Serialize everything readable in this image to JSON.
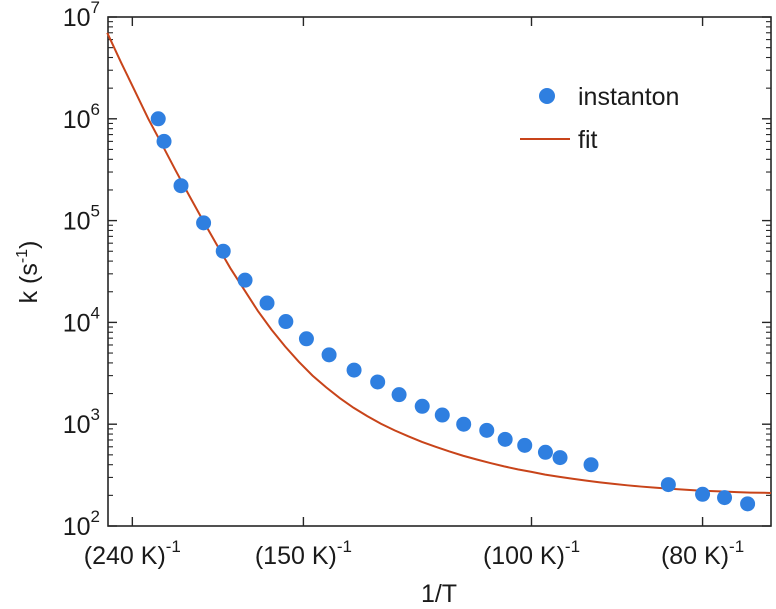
{
  "chart_data": {
    "type": "scatter",
    "xlabel": "1/T",
    "ylabel_base": "k (s",
    "ylabel_sup": "-1",
    "ylabel_close": ")",
    "yscale": "log",
    "ylim": [
      100,
      10000000
    ],
    "xlim": [
      0.003811,
      0.0135
    ],
    "grid": false,
    "legend_position": "top-right",
    "x_tick_labels": [
      {
        "x": 0.0041667,
        "base": "(240 K)",
        "sup": "-1"
      },
      {
        "x": 0.0066667,
        "base": "(150 K)",
        "sup": "-1"
      },
      {
        "x": 0.01,
        "base": "(100 K)",
        "sup": "-1"
      },
      {
        "x": 0.0125,
        "base": "(80 K)",
        "sup": "-1"
      }
    ],
    "y_tick_labels": [
      {
        "value": 100,
        "base": "10",
        "sup": "2"
      },
      {
        "value": 1000,
        "base": "10",
        "sup": "3"
      },
      {
        "value": 10000,
        "base": "10",
        "sup": "4"
      },
      {
        "value": 100000,
        "base": "10",
        "sup": "5"
      },
      {
        "value": 1000000,
        "base": "10",
        "sup": "6"
      },
      {
        "value": 10000000,
        "base": "10",
        "sup": "7"
      }
    ],
    "series": [
      {
        "name": "instanton",
        "kind": "points",
        "color": "#2f7fe0",
        "x": [
          0.004545,
          0.00463,
          0.004878,
          0.005208,
          0.005495,
          0.005814,
          0.006135,
          0.00641,
          0.006711,
          0.007042,
          0.007407,
          0.007752,
          0.008065,
          0.008403,
          0.008696,
          0.009009,
          0.009346,
          0.009615,
          0.009901,
          0.010204,
          0.010417,
          0.01087,
          0.012,
          0.0125,
          0.012821,
          0.013158
        ],
        "y": [
          1000000,
          600000,
          220000,
          95000,
          50000,
          26000,
          15500,
          10200,
          6900,
          4800,
          3400,
          2600,
          1950,
          1500,
          1230,
          1000,
          870,
          710,
          620,
          530,
          470,
          400,
          255,
          205,
          190,
          165
        ]
      },
      {
        "name": "fit",
        "kind": "line",
        "color": "#c8441a",
        "x": [
          0.0038,
          0.004,
          0.0042,
          0.0044,
          0.0046,
          0.0048,
          0.005,
          0.0052,
          0.0054,
          0.0056,
          0.0058,
          0.006,
          0.0062,
          0.0064,
          0.0066,
          0.0068,
          0.007,
          0.0072,
          0.0074,
          0.0076,
          0.0078,
          0.008,
          0.0082,
          0.0084,
          0.0086,
          0.0088,
          0.009,
          0.0092,
          0.0094,
          0.0096,
          0.0098,
          0.01,
          0.0102,
          0.0104,
          0.0106,
          0.0108,
          0.011,
          0.0112,
          0.0114,
          0.0116,
          0.0118,
          0.012,
          0.0122,
          0.0124,
          0.0126,
          0.0128,
          0.013,
          0.0132,
          0.0134,
          0.0135
        ],
        "y": [
          7000000,
          3600000,
          1900000,
          1000000,
          560000,
          310000,
          175000,
          100000,
          58000,
          34000,
          21000,
          13000,
          8500,
          5800,
          4100,
          3000,
          2300,
          1800,
          1450,
          1200,
          1010,
          870,
          760,
          670,
          600,
          540,
          490,
          450,
          415,
          385,
          360,
          340,
          320,
          305,
          291,
          279,
          268,
          259,
          251,
          244,
          238,
          233,
          228,
          224,
          221,
          218,
          215,
          213,
          212,
          211
        ]
      }
    ]
  }
}
